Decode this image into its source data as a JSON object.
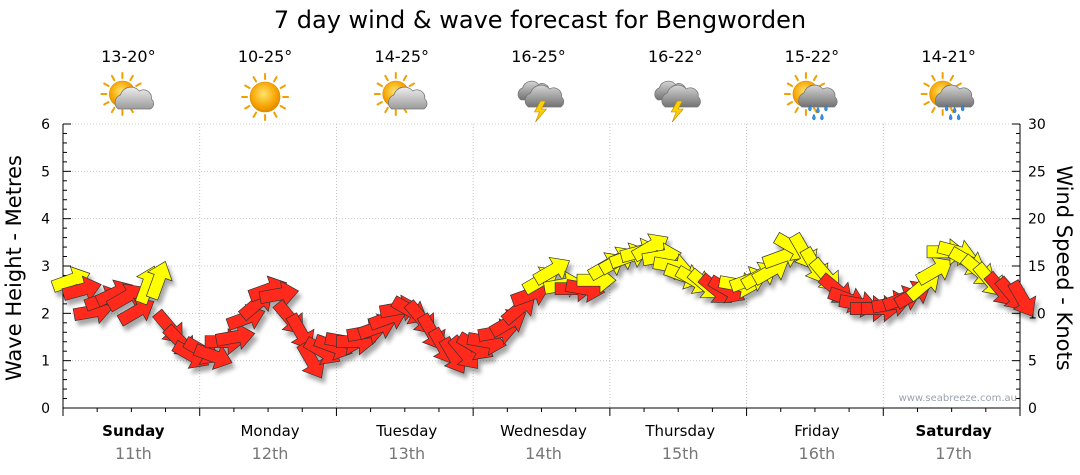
{
  "chart_data": {
    "type": "line",
    "title": "7 day wind & wave forecast for Bengworden",
    "ylabel_left": "Wave Height - Metres",
    "ylabel_right": "Wind Speed - Knots",
    "ylim_left": [
      0,
      6
    ],
    "ylim_right": [
      0,
      30
    ],
    "yticks_left": [
      "0",
      "1",
      "2",
      "3",
      "4",
      "5",
      "6"
    ],
    "yticks_right": [
      "0",
      "5",
      "10",
      "15",
      "20",
      "25",
      "30"
    ],
    "grid": true,
    "credit": "www.seabreeze.com.au",
    "days": [
      {
        "day": "Sunday",
        "date": "11th",
        "temp": "13-20°",
        "icon": "partly-cloudy-icon",
        "bold": true
      },
      {
        "day": "Monday",
        "date": "12th",
        "temp": "10-25°",
        "icon": "sunny-icon",
        "bold": false
      },
      {
        "day": "Tuesday",
        "date": "13th",
        "temp": "14-25°",
        "icon": "partly-cloudy-icon",
        "bold": false
      },
      {
        "day": "Wednesday",
        "date": "14th",
        "temp": "16-25°",
        "icon": "thunderstorm-icon",
        "bold": false
      },
      {
        "day": "Thursday",
        "date": "15th",
        "temp": "16-22°",
        "icon": "thunderstorm-icon",
        "bold": false
      },
      {
        "day": "Friday",
        "date": "16th",
        "temp": "15-22°",
        "icon": "sun-shower-icon",
        "bold": false
      },
      {
        "day": "Saturday",
        "date": "17th",
        "temp": "14-21°",
        "icon": "sun-shower-icon",
        "bold": true
      }
    ],
    "series": [
      {
        "unit": "knots",
        "x_days": [
          0,
          0.08,
          0.16,
          0.24,
          0.32,
          0.4,
          0.48,
          0.56,
          0.64,
          0.72,
          0.8,
          0.88,
          0.96,
          1.04,
          1.12,
          1.2,
          1.28,
          1.36,
          1.44,
          1.52,
          1.6,
          1.68,
          1.76,
          1.84,
          1.92,
          2.0,
          2.08,
          2.16,
          2.24,
          2.32,
          2.4,
          2.48,
          2.56,
          2.64,
          2.72,
          2.8,
          2.88,
          2.96,
          3.04,
          3.12,
          3.2,
          3.28,
          3.36,
          3.44,
          3.52,
          3.6,
          3.68,
          3.76,
          3.84,
          3.92,
          4.0,
          4.08,
          4.16,
          4.24,
          4.32,
          4.4,
          4.48,
          4.56,
          4.64,
          4.72,
          4.8,
          4.88,
          4.96,
          5.04,
          5.12,
          5.2,
          5.28,
          5.36,
          5.44,
          5.52,
          5.6,
          5.68,
          5.76,
          5.84,
          5.92,
          6.0,
          6.08,
          6.16,
          6.24,
          6.32,
          6.4,
          6.48,
          6.56,
          6.64,
          6.72,
          6.8,
          6.88,
          6.96
        ],
        "wind_knots": [
          13.5,
          12.5,
          10.2,
          11.5,
          12.1,
          11.7,
          10.2,
          13.0,
          13.5,
          8.5,
          7.0,
          5.6,
          6.0,
          5.5,
          7.0,
          7.5,
          9.5,
          11.0,
          12.5,
          12.0,
          9.5,
          8.0,
          5.0,
          6.0,
          6.5,
          7.0,
          7.0,
          8.0,
          8.5,
          9.5,
          10.5,
          10.3,
          9.5,
          8.0,
          6.5,
          5.5,
          5.8,
          6.5,
          7.0,
          8.0,
          9.0,
          10.5,
          12.0,
          13.5,
          14.5,
          13.0,
          12.6,
          12.6,
          13.5,
          15.0,
          15.6,
          16.0,
          16.5,
          17.0,
          16.0,
          15.0,
          14.0,
          13.5,
          13.0,
          12.5,
          12.5,
          13.0,
          13.5,
          14.0,
          14.5,
          16.0,
          17.0,
          16.5,
          15.0,
          14.0,
          12.5,
          11.5,
          11.0,
          10.5,
          10.5,
          11.0,
          11.5,
          12.0,
          13.0,
          14.5,
          16.5,
          16.5,
          15.5,
          14.5,
          13.5,
          12.5,
          12.0,
          11.5
        ],
        "direction_deg": [
          250,
          255,
          260,
          250,
          245,
          240,
          240,
          200,
          200,
          320,
          315,
          300,
          300,
          290,
          270,
          260,
          250,
          230,
          250,
          260,
          320,
          330,
          330,
          300,
          290,
          280,
          270,
          260,
          250,
          250,
          260,
          300,
          320,
          330,
          330,
          330,
          320,
          300,
          280,
          260,
          240,
          230,
          250,
          240,
          240,
          260,
          270,
          280,
          270,
          240,
          240,
          250,
          255,
          240,
          260,
          280,
          290,
          300,
          310,
          310,
          300,
          280,
          250,
          240,
          240,
          250,
          300,
          330,
          330,
          320,
          310,
          290,
          280,
          270,
          270,
          260,
          250,
          240,
          230,
          240,
          270,
          285,
          300,
          310,
          320,
          320,
          320,
          330
        ],
        "color_threshold_knots": 13
      }
    ]
  }
}
